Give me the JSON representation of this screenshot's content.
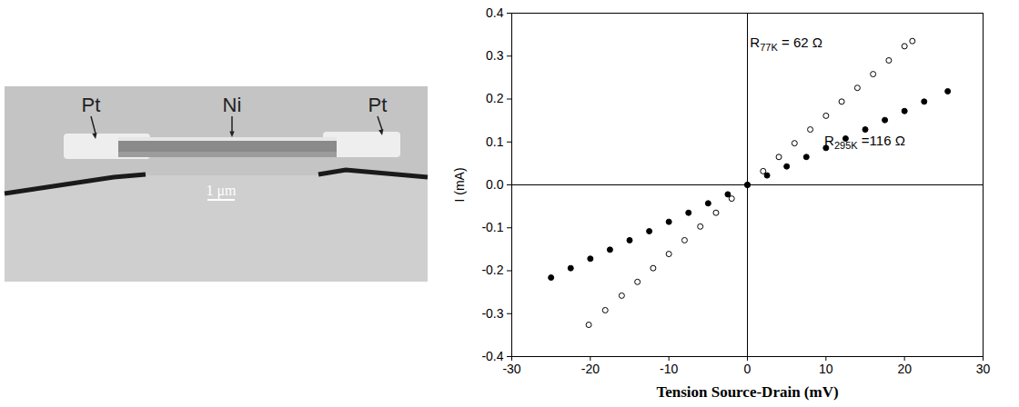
{
  "chart_data": {
    "type": "scatter",
    "x_label": "Tension Source-Drain (mV)",
    "y_label": "I (mA)",
    "xlim": [
      -30,
      30
    ],
    "xticks": [
      -30,
      -20,
      -10,
      0,
      10,
      20,
      30
    ],
    "ylim": [
      -0.4,
      0.4
    ],
    "yticks": [
      -0.4,
      -0.3,
      -0.2,
      -0.1,
      {
        "value": 0,
        "label": "0.0"
      },
      0.1,
      0.2,
      0.3,
      0.4
    ],
    "series": [
      {
        "name": "77K",
        "color": "#000000",
        "marker": "open_circle",
        "x": [
          -20.2,
          -18.1,
          -16.0,
          -14.0,
          -12.0,
          -10.0,
          -8.0,
          -6.0,
          -4.0,
          -2.0,
          0,
          2.0,
          4.0,
          6.0,
          8.0,
          10.0,
          12.0,
          14.0,
          16.0,
          18.0,
          20.0,
          21.0
        ],
        "values": [
          -0.326,
          -0.292,
          -0.258,
          -0.226,
          -0.194,
          -0.161,
          -0.129,
          -0.097,
          -0.065,
          -0.032,
          0,
          0.032,
          0.065,
          0.097,
          0.129,
          0.161,
          0.194,
          0.226,
          0.258,
          0.29,
          0.323,
          0.335
        ]
      },
      {
        "name": "295K",
        "color": "#000000",
        "marker": "circle",
        "x": [
          -25.0,
          -22.5,
          -20.0,
          -17.5,
          -15.0,
          -12.5,
          -10.0,
          -7.5,
          -5.0,
          -2.5,
          0,
          2.5,
          5.0,
          7.5,
          10.0,
          12.5,
          15.0,
          17.5,
          20.0,
          22.5,
          25.5
        ],
        "values": [
          -0.216,
          -0.194,
          -0.172,
          -0.151,
          -0.129,
          -0.108,
          -0.086,
          -0.065,
          -0.043,
          -0.022,
          0,
          0.022,
          0.043,
          0.065,
          0.086,
          0.108,
          0.129,
          0.151,
          0.172,
          0.194,
          0.218
        ]
      }
    ],
    "annotations": [
      {
        "text": "R",
        "subscript": "77K",
        "suffix": " = 62 Ω",
        "x": 5,
        "y": 0.32
      },
      {
        "text": "R",
        "subscript": "295K",
        "suffix": " =116 Ω",
        "x": 15,
        "y": 0.09
      }
    ]
  },
  "micrograph": {
    "labels": [
      "Pt",
      "Ni",
      "Pt"
    ],
    "scale_bar": "1 μm"
  }
}
